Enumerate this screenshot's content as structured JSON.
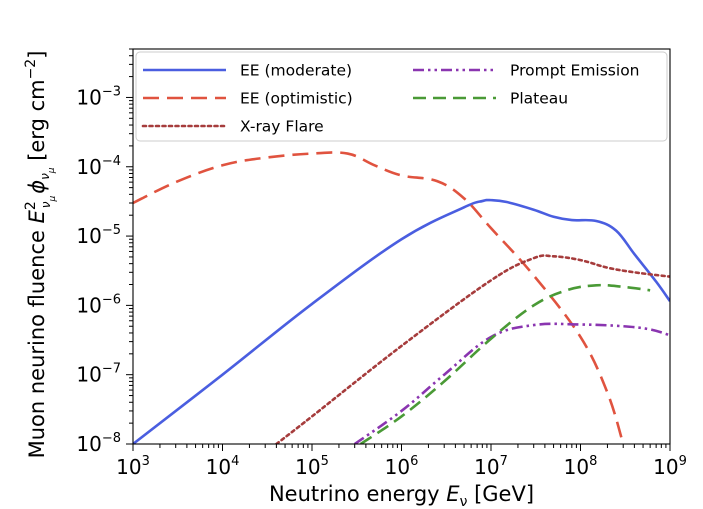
{
  "chart_data": {
    "type": "line",
    "xlabel_parts": [
      "Neutrino energy ",
      "E",
      "ν",
      " [GeV]"
    ],
    "ylabel_parts": [
      "Muon neurino fluence ",
      "E",
      "2",
      "ν",
      "μ",
      "ϕ",
      "ν",
      "μ",
      " [erg cm",
      "−2",
      "]"
    ],
    "xscale": "log",
    "yscale": "log",
    "xlim": [
      1000,
      1000000000
    ],
    "ylim": [
      1e-08,
      0.005
    ],
    "x_ticks": [
      {
        "base": "10",
        "exp": "3",
        "value": 1000
      },
      {
        "base": "10",
        "exp": "4",
        "value": 10000
      },
      {
        "base": "10",
        "exp": "5",
        "value": 100000
      },
      {
        "base": "10",
        "exp": "6",
        "value": 1000000
      },
      {
        "base": "10",
        "exp": "7",
        "value": 10000000
      },
      {
        "base": "10",
        "exp": "8",
        "value": 100000000
      },
      {
        "base": "10",
        "exp": "9",
        "value": 1000000000
      }
    ],
    "y_ticks": [
      {
        "base": "10",
        "exp": "−8",
        "value": 1e-08
      },
      {
        "base": "10",
        "exp": "−7",
        "value": 1e-07
      },
      {
        "base": "10",
        "exp": "−6",
        "value": 1e-06
      },
      {
        "base": "10",
        "exp": "−5",
        "value": 1e-05
      },
      {
        "base": "10",
        "exp": "−4",
        "value": 0.0001
      },
      {
        "base": "10",
        "exp": "−3",
        "value": 0.001
      }
    ],
    "grid": false,
    "legend_position": "top",
    "series": [
      {
        "name": "EE (moderate)",
        "color": "#4a5ee0",
        "style": "solid",
        "points": [
          [
            1000,
            1e-08
          ],
          [
            10000,
            1e-07
          ],
          [
            100000,
            1.05e-06
          ],
          [
            1000000,
            9e-06
          ],
          [
            5000000,
            2.6e-05
          ],
          [
            8000000,
            3.2e-05
          ],
          [
            10000000,
            3.3e-05
          ],
          [
            15000000,
            3.1e-05
          ],
          [
            30000000,
            2.4e-05
          ],
          [
            50000000,
            1.9e-05
          ],
          [
            80000000,
            1.7e-05
          ],
          [
            150000000,
            1.65e-05
          ],
          [
            250000000,
            1.2e-05
          ],
          [
            400000000,
            5.5e-06
          ],
          [
            700000000,
            2.2e-06
          ],
          [
            1000000000,
            1.15e-06
          ]
        ]
      },
      {
        "name": "EE (optimistic)",
        "color": "#e0533f",
        "style": "longdash",
        "points": [
          [
            1000,
            3e-05
          ],
          [
            3000,
            6e-05
          ],
          [
            10000,
            0.000105
          ],
          [
            30000,
            0.000135
          ],
          [
            100000,
            0.000155
          ],
          [
            250000,
            0.000155
          ],
          [
            500000,
            0.000105
          ],
          [
            1000000,
            7.5e-05
          ],
          [
            2500000,
            6.2e-05
          ],
          [
            5000000,
            3.5e-05
          ],
          [
            10000000,
            1.3e-05
          ],
          [
            30000000,
            2.7e-06
          ],
          [
            100000000,
            3.5e-07
          ],
          [
            200000000,
            5.5e-08
          ],
          [
            300000000,
            1e-08
          ]
        ]
      },
      {
        "name": "X-ray Flare",
        "color": "#a63c3c",
        "style": "dotted",
        "points": [
          [
            40000,
            1e-08
          ],
          [
            100000,
            2.5e-08
          ],
          [
            1000000,
            2.6e-07
          ],
          [
            10000000,
            2.3e-06
          ],
          [
            30000000,
            4.8e-06
          ],
          [
            50000000,
            5.1e-06
          ],
          [
            100000000,
            4.5e-06
          ],
          [
            200000000,
            3.5e-06
          ],
          [
            400000000,
            3e-06
          ],
          [
            1000000000,
            2.6e-06
          ]
        ]
      },
      {
        "name": "Prompt Emission",
        "color": "#8a35b0",
        "style": "dashdotdot",
        "points": [
          [
            300000,
            1e-08
          ],
          [
            1000000,
            3e-08
          ],
          [
            3000000,
            1e-07
          ],
          [
            10000000,
            3.5e-07
          ],
          [
            30000000,
            5.2e-07
          ],
          [
            100000000,
            5.3e-07
          ],
          [
            300000000,
            5e-07
          ],
          [
            600000000,
            4.5e-07
          ],
          [
            1000000000,
            3.7e-07
          ]
        ]
      },
      {
        "name": "Plateau",
        "color": "#4a9a36",
        "style": "dashed",
        "points": [
          [
            350000,
            1e-08
          ],
          [
            1000000,
            2.5e-08
          ],
          [
            3000000,
            8e-08
          ],
          [
            10000000,
            3.3e-07
          ],
          [
            30000000,
            1e-06
          ],
          [
            70000000,
            1.65e-06
          ],
          [
            150000000,
            1.95e-06
          ],
          [
            300000000,
            1.85e-06
          ],
          [
            600000000,
            1.65e-06
          ]
        ]
      }
    ]
  }
}
